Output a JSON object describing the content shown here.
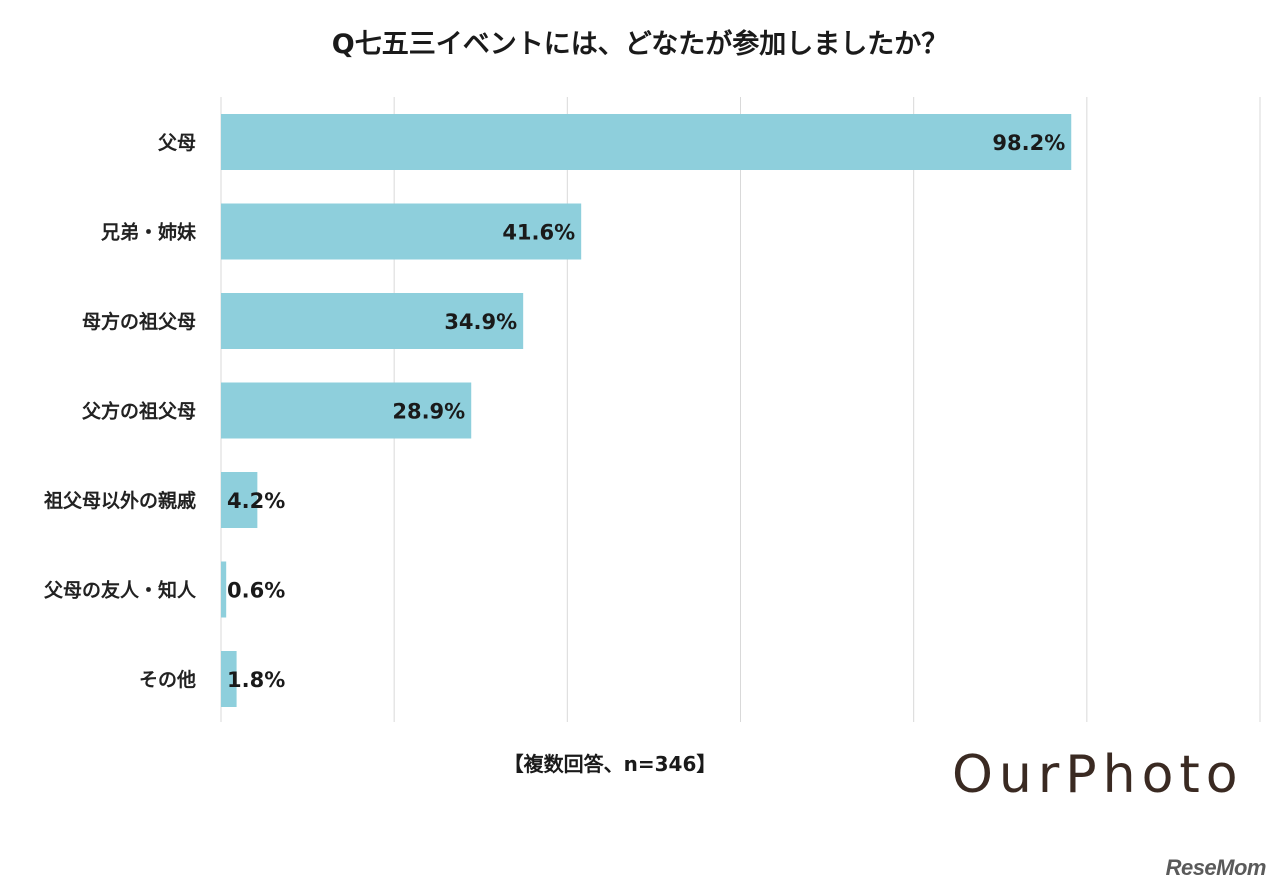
{
  "chart_data": {
    "type": "bar",
    "orientation": "horizontal",
    "title": "Q七五三イベントには、どなたが参加しましたか？",
    "categories": [
      "父母",
      "兄弟・姉妹",
      "母方の祖父母",
      "父方の祖父母",
      "祖父母以外の親戚",
      "父母の友人・知人",
      "その他"
    ],
    "values": [
      98.2,
      41.6,
      34.9,
      28.9,
      4.2,
      0.6,
      1.8
    ],
    "value_labels": [
      "98.2%",
      "41.6%",
      "34.9%",
      "28.9%",
      "4.2%",
      "0.6%",
      "1.8%"
    ],
    "xlim": [
      0,
      120
    ],
    "grid": true,
    "bar_color": "#8ecfdc",
    "note": "【複数回答、n=346】"
  },
  "logos": {
    "brand": "OurPhoto",
    "source": "ReseMom"
  }
}
